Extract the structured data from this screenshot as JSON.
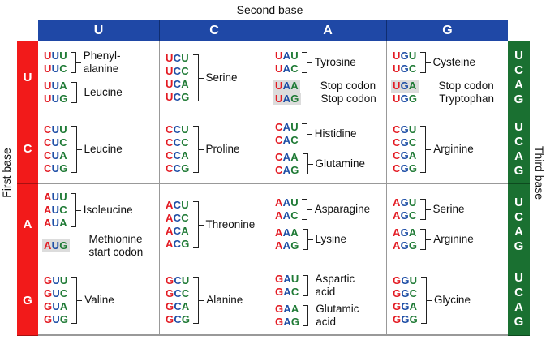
{
  "labels": {
    "second_base": "Second base",
    "first_base": "First base",
    "third_base": "Third base"
  },
  "colors": {
    "header_blue": "#1f48a6",
    "first_base_red": "#f21a1a",
    "third_base_green": "#1a7031",
    "codon_first": "#e31b23",
    "codon_second": "#1f4fa6",
    "codon_third": "#1f7a35",
    "highlight_gray": "#dcdcdc"
  },
  "second_bases": [
    "U",
    "C",
    "A",
    "G"
  ],
  "first_bases": [
    "U",
    "C",
    "A",
    "G"
  ],
  "third_bases": [
    "U",
    "C",
    "A",
    "G"
  ],
  "rows": [
    {
      "first": "U",
      "cells": [
        {
          "second": "U",
          "groups": [
            {
              "codons": [
                "UUU",
                "UUC"
              ],
              "amino_acid": "Phenyl-\nalanine"
            },
            {
              "codons": [
                "UUA",
                "UUG"
              ],
              "amino_acid": "Leucine"
            }
          ]
        },
        {
          "second": "C",
          "groups": [
            {
              "codons": [
                "UCU",
                "UCC",
                "UCA",
                "UCG"
              ],
              "amino_acid": "Serine"
            }
          ]
        },
        {
          "second": "A",
          "groups": [
            {
              "codons": [
                "UAU",
                "UAC"
              ],
              "amino_acid": "Tyrosine"
            },
            {
              "codons": [
                "UAA"
              ],
              "amino_acid": "Stop codon",
              "highlight": true
            },
            {
              "codons": [
                "UAG"
              ],
              "amino_acid": "Stop codon",
              "highlight": true
            }
          ]
        },
        {
          "second": "G",
          "groups": [
            {
              "codons": [
                "UGU",
                "UGC"
              ],
              "amino_acid": "Cysteine"
            },
            {
              "codons": [
                "UGA"
              ],
              "amino_acid": "Stop codon",
              "highlight": true
            },
            {
              "codons": [
                "UGG"
              ],
              "amino_acid": "Tryptophan"
            }
          ]
        }
      ]
    },
    {
      "first": "C",
      "cells": [
        {
          "second": "U",
          "groups": [
            {
              "codons": [
                "CUU",
                "CUC",
                "CUA",
                "CUG"
              ],
              "amino_acid": "Leucine"
            }
          ]
        },
        {
          "second": "C",
          "groups": [
            {
              "codons": [
                "CCU",
                "CCC",
                "CCA",
                "CCG"
              ],
              "amino_acid": "Proline"
            }
          ]
        },
        {
          "second": "A",
          "groups": [
            {
              "codons": [
                "CAU",
                "CAC"
              ],
              "amino_acid": "Histidine"
            },
            {
              "codons": [
                "CAA",
                "CAG"
              ],
              "amino_acid": "Glutamine"
            }
          ]
        },
        {
          "second": "G",
          "groups": [
            {
              "codons": [
                "CGU",
                "CGC",
                "CGA",
                "CGG"
              ],
              "amino_acid": "Arginine"
            }
          ]
        }
      ]
    },
    {
      "first": "A",
      "cells": [
        {
          "second": "U",
          "groups": [
            {
              "codons": [
                "AUU",
                "AUC",
                "AUA"
              ],
              "amino_acid": "Isoleucine"
            },
            {
              "codons": [
                "AUG"
              ],
              "amino_acid": "Methionine\nstart codon",
              "highlight": true
            }
          ]
        },
        {
          "second": "C",
          "groups": [
            {
              "codons": [
                "ACU",
                "ACC",
                "ACA",
                "ACG"
              ],
              "amino_acid": "Threonine"
            }
          ]
        },
        {
          "second": "A",
          "groups": [
            {
              "codons": [
                "AAU",
                "AAC"
              ],
              "amino_acid": "Asparagine"
            },
            {
              "codons": [
                "AAA",
                "AAG"
              ],
              "amino_acid": "Lysine"
            }
          ]
        },
        {
          "second": "G",
          "groups": [
            {
              "codons": [
                "AGU",
                "AGC"
              ],
              "amino_acid": "Serine"
            },
            {
              "codons": [
                "AGA",
                "AGG"
              ],
              "amino_acid": "Arginine"
            }
          ]
        }
      ]
    },
    {
      "first": "G",
      "cells": [
        {
          "second": "U",
          "groups": [
            {
              "codons": [
                "GUU",
                "GUC",
                "GUA",
                "GUG"
              ],
              "amino_acid": "Valine"
            }
          ]
        },
        {
          "second": "C",
          "groups": [
            {
              "codons": [
                "GCU",
                "GCC",
                "GCA",
                "GCG"
              ],
              "amino_acid": "Alanine"
            }
          ]
        },
        {
          "second": "A",
          "groups": [
            {
              "codons": [
                "GAU",
                "GAC"
              ],
              "amino_acid": "Aspartic\nacid"
            },
            {
              "codons": [
                "GAA",
                "GAG"
              ],
              "amino_acid": "Glutamic\nacid"
            }
          ]
        },
        {
          "second": "G",
          "groups": [
            {
              "codons": [
                "GGU",
                "GGC",
                "GGA",
                "GGG"
              ],
              "amino_acid": "Glycine"
            }
          ]
        }
      ]
    }
  ]
}
